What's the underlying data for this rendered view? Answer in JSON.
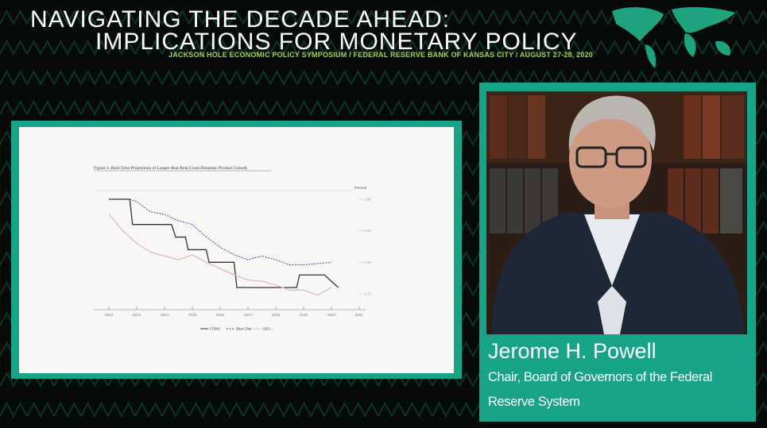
{
  "header": {
    "title_line1": "NAVIGATING THE DECADE AHEAD:",
    "title_line2": "IMPLICATIONS FOR MONETARY POLICY",
    "subtitle": "JACKSON HOLE ECONOMIC POLICY SYMPOSIUM / FEDERAL RESERVE BANK OF KANSAS CITY / AUGUST 27-28, 2020"
  },
  "chart_data": {
    "type": "line",
    "title": "Figure 1: Real-Time Projections of Longer-Run Real Gross Domestic Product Growth",
    "y_axis_label": "Percent",
    "xlim": [
      2011.8,
      2021.2
    ],
    "xticks": [
      2012,
      2013,
      2014,
      2015,
      2016,
      2017,
      2018,
      2019,
      2020,
      2021
    ],
    "ylim": [
      1.7,
      2.6
    ],
    "yticks": [
      {
        "value": 1.75,
        "label": "1.75"
      },
      {
        "value": 2,
        "label": "2.00"
      },
      {
        "value": 2.25,
        "label": "2.25"
      },
      {
        "value": 2.5,
        "label": "2.50"
      }
    ],
    "series": [
      {
        "name": "FOMC",
        "color": "#333333",
        "style": "solid",
        "x": [
          2012,
          2012.75,
          2012.85,
          2014.25,
          2014.4,
          2014.75,
          2014.85,
          2015.5,
          2015.6,
          2016.5,
          2016.6,
          2018.75,
          2018.85,
          2019.75,
          2020.25
        ],
        "values": [
          2.5,
          2.5,
          2.3,
          2.3,
          2.2,
          2.2,
          2.1,
          2.1,
          2.0,
          2.0,
          1.8,
          1.8,
          1.9,
          1.9,
          1.8
        ]
      },
      {
        "name": "Blue Chip",
        "color": "#3a4fa0",
        "style": "dotted",
        "x": [
          2012.75,
          2013,
          2013.5,
          2014,
          2014.5,
          2015,
          2015.5,
          2016,
          2016.5,
          2017,
          2017.5,
          2018,
          2018.5,
          2019,
          2019.5,
          2020
        ],
        "values": [
          2.5,
          2.48,
          2.4,
          2.38,
          2.33,
          2.3,
          2.2,
          2.12,
          2.06,
          2.02,
          2.05,
          2.02,
          1.98,
          1.98,
          1.99,
          2.0
        ]
      },
      {
        "name": "CBO",
        "color": "#e6b8c0",
        "style": "solid",
        "x": [
          2012,
          2012.5,
          2013,
          2013.5,
          2014,
          2014.5,
          2015,
          2015.5,
          2016,
          2016.5,
          2017,
          2017.5,
          2018,
          2018.5,
          2019,
          2019.5,
          2020
        ],
        "values": [
          2.38,
          2.25,
          2.15,
          2.08,
          2.05,
          2.02,
          2.06,
          2.0,
          1.95,
          1.9,
          1.86,
          1.85,
          1.82,
          1.78,
          1.78,
          1.74,
          1.8
        ]
      }
    ]
  },
  "speaker": {
    "name": "Jerome H. Powell",
    "role": "Chair, Board of Governors of the Federal Reserve System"
  }
}
